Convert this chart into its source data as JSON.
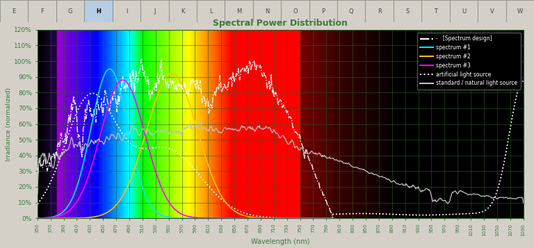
{
  "title": "Spectral Power Distribution",
  "xlabel": "Wavelength (nm)",
  "ylabel": "Irradiance (normalized)",
  "xlim": [
    350,
    1090
  ],
  "ylim": [
    0,
    1.2
  ],
  "yticks": [
    0,
    0.1,
    0.2,
    0.3,
    0.4,
    0.5,
    0.6,
    0.7,
    0.8,
    0.9,
    1.0,
    1.1,
    1.2
  ],
  "ytick_labels": [
    "0%",
    "10%",
    "20%",
    "30%",
    "40%",
    "50%",
    "60%",
    "70%",
    "80%",
    "90%",
    "100%",
    "110%",
    "120%"
  ],
  "bg_color": "#000000",
  "fig_bg_color": "#c0c0c0",
  "grid_color": "#2a5a2a",
  "text_color": "#3a7a3a",
  "title_color": "#3a7a3a",
  "excel_bg": "#d4d0c8",
  "col_letters": [
    "E",
    "F",
    "G",
    "H",
    "I",
    "J",
    "K",
    "L",
    "M",
    "N",
    "O",
    "P",
    "Q",
    "R",
    "S",
    "T",
    "U",
    "V",
    "W"
  ],
  "legend_bg": "#000000",
  "legend_edge": "#555555"
}
